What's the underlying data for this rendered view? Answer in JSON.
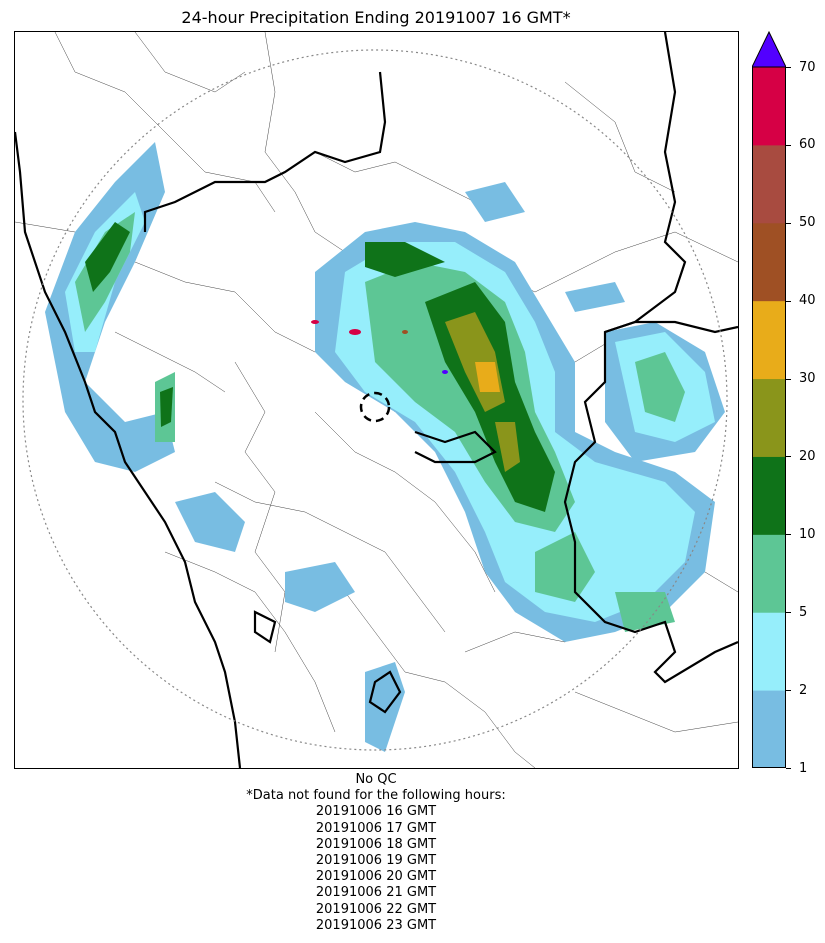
{
  "title": "24-hour Precipitation Ending 20191007 16 GMT*",
  "map": {
    "projection_note": "",
    "radar_site": "center ring",
    "features": [
      "state-borders",
      "district-borders",
      "coastline",
      "range-ring"
    ]
  },
  "colorbar": {
    "ticks": [
      "1",
      "2",
      "5",
      "10",
      "20",
      "30",
      "40",
      "50",
      "60",
      "70"
    ],
    "levels": [
      {
        "from": "1",
        "to": "2",
        "color": "#78bde2"
      },
      {
        "from": "2",
        "to": "5",
        "color": "#96eefb"
      },
      {
        "from": "5",
        "to": "10",
        "color": "#5dc695"
      },
      {
        "from": "10",
        "to": "20",
        "color": "#0f7319"
      },
      {
        "from": "20",
        "to": "30",
        "color": "#8a951b"
      },
      {
        "from": "30",
        "to": "40",
        "color": "#e8ac1a"
      },
      {
        "from": "40",
        "to": "50",
        "color": "#9f5024"
      },
      {
        "from": "50",
        "to": "60",
        "color": "#a84b40"
      },
      {
        "from": "60",
        "to": "70",
        "color": "#d60045"
      },
      {
        "from": "70",
        "to": "",
        "color": "#5200ff"
      }
    ]
  },
  "footer": {
    "qc": "No QC",
    "missing_note": "*Data not found for the following hours:",
    "missing_hours": [
      "20191006 16 GMT",
      "20191006 17 GMT",
      "20191006 18 GMT",
      "20191006 19 GMT",
      "20191006 20 GMT",
      "20191006 21 GMT",
      "20191006 22 GMT",
      "20191006 23 GMT"
    ]
  }
}
